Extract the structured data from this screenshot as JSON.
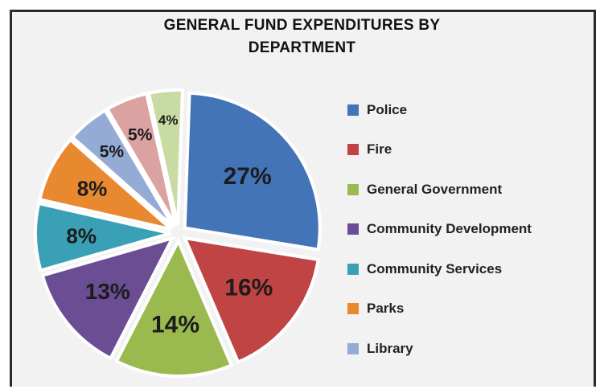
{
  "chart_data": {
    "type": "pie",
    "title_lines": [
      "GENERAL FUND EXPENDITURES BY",
      "DEPARTMENT"
    ],
    "categories": [
      "Police",
      "Fire",
      "General Government",
      "Community Development",
      "Community Services",
      "Parks",
      "Library",
      "",
      ""
    ],
    "values": [
      27,
      16,
      14,
      13,
      8,
      8,
      5,
      5,
      4
    ],
    "labels": [
      "27%",
      "16%",
      "14%",
      "13%",
      "8%",
      "8%",
      "5%",
      "5%",
      "4%"
    ],
    "colors": [
      "#4374b8",
      "#c04444",
      "#9aba4f",
      "#6a4d93",
      "#3aa0b5",
      "#e8892f",
      "#94abd6",
      "#dba2a2",
      "#c7dba3"
    ],
    "legend_count": 7,
    "legend_position": "right"
  }
}
